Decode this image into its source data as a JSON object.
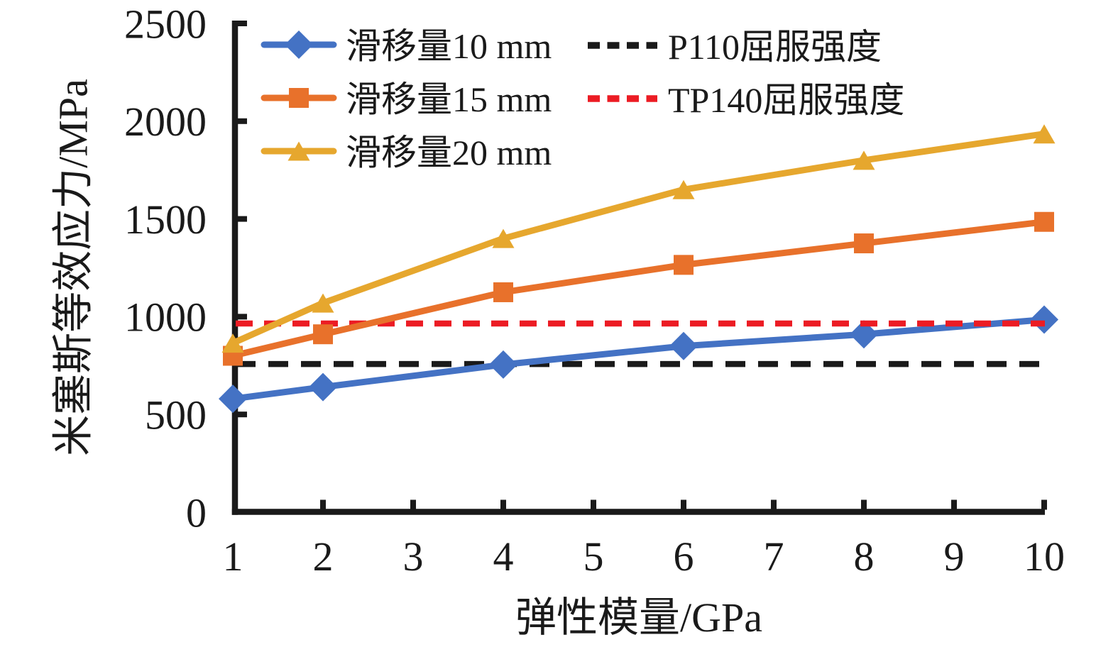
{
  "figure": {
    "background": "#ffffff",
    "text_color": "#1a1a1a"
  },
  "chart_data": {
    "type": "line",
    "title": "",
    "xlabel": "弹性模量/GPa",
    "ylabel": "米塞斯等效应力/MPa",
    "x": [
      1,
      2,
      4,
      6,
      8,
      10
    ],
    "xlim": [
      1,
      10
    ],
    "ylim": [
      0,
      2500
    ],
    "x_ticks": [
      1,
      2,
      3,
      4,
      5,
      6,
      7,
      8,
      9,
      10
    ],
    "y_ticks": [
      0,
      500,
      1000,
      1500,
      2000,
      2500
    ],
    "grid": false,
    "legend_position": "top-left-inside",
    "series": [
      {
        "name": "滑移量10 mm",
        "marker": "diamond",
        "color": "#4472C4",
        "values": [
          580,
          640,
          755,
          850,
          910,
          985
        ]
      },
      {
        "name": "滑移量15 mm",
        "marker": "square",
        "color": "#E8712B",
        "values": [
          800,
          910,
          1125,
          1265,
          1375,
          1485
        ]
      },
      {
        "name": "滑移量20 mm",
        "marker": "triangle",
        "color": "#E6A72E",
        "values": [
          865,
          1070,
          1400,
          1650,
          1800,
          1935
        ]
      }
    ],
    "reference_lines": [
      {
        "name": "P110屈服强度",
        "value": 758,
        "color": "#1A1A1A",
        "style": "dashed"
      },
      {
        "name": "TP140屈服强度",
        "value": 965,
        "color": "#EC1C24",
        "style": "dashed"
      }
    ]
  }
}
